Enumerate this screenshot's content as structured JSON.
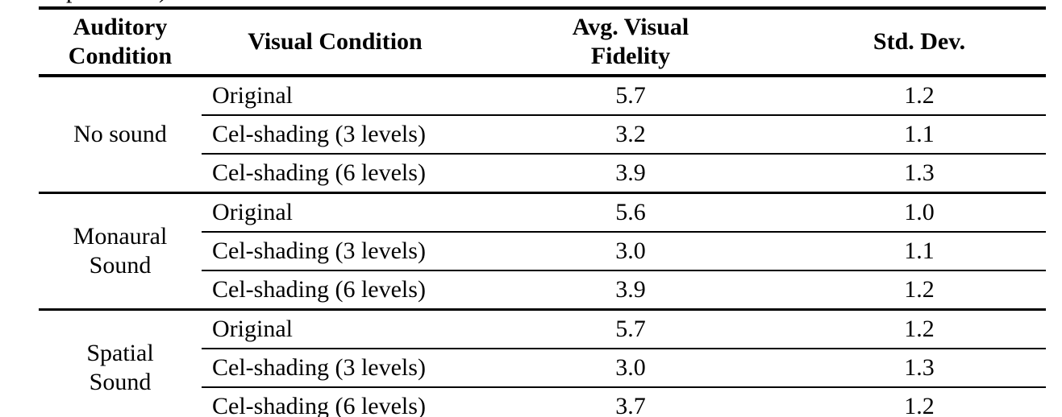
{
  "page": {
    "background": "#ffffff",
    "text_color": "#000000",
    "rule_color": "#000000"
  },
  "clipped_caption": {
    "left_fragment": "p",
    "right_fragment": ")"
  },
  "table": {
    "headers": {
      "auditory": {
        "line1": "Auditory",
        "line2": "Condition"
      },
      "visual": {
        "line1": "Visual Condition"
      },
      "avg": {
        "line1": "Avg. Visual",
        "line2": "Fidelity"
      },
      "std": {
        "line1": "Std. Dev."
      }
    },
    "groups": [
      {
        "auditory": {
          "line1": "No sound"
        },
        "rows": [
          {
            "visual": "Original",
            "avg": "5.7",
            "std": "1.2"
          },
          {
            "visual": "Cel-shading (3 levels)",
            "avg": "3.2",
            "std": "1.1"
          },
          {
            "visual": "Cel-shading (6 levels)",
            "avg": "3.9",
            "std": "1.3"
          }
        ]
      },
      {
        "auditory": {
          "line1": "Monaural",
          "line2": "Sound"
        },
        "rows": [
          {
            "visual": "Original",
            "avg": "5.6",
            "std": "1.0"
          },
          {
            "visual": "Cel-shading (3 levels)",
            "avg": "3.0",
            "std": "1.1"
          },
          {
            "visual": "Cel-shading (6 levels)",
            "avg": "3.9",
            "std": "1.2"
          }
        ]
      },
      {
        "auditory": {
          "line1": "Spatial",
          "line2": "Sound"
        },
        "rows": [
          {
            "visual": "Original",
            "avg": "5.7",
            "std": "1.2"
          },
          {
            "visual": "Cel-shading (3 levels)",
            "avg": "3.0",
            "std": "1.3"
          },
          {
            "visual": "Cel-shading (6 levels)",
            "avg": "3.7",
            "std": "1.2"
          }
        ]
      }
    ]
  }
}
